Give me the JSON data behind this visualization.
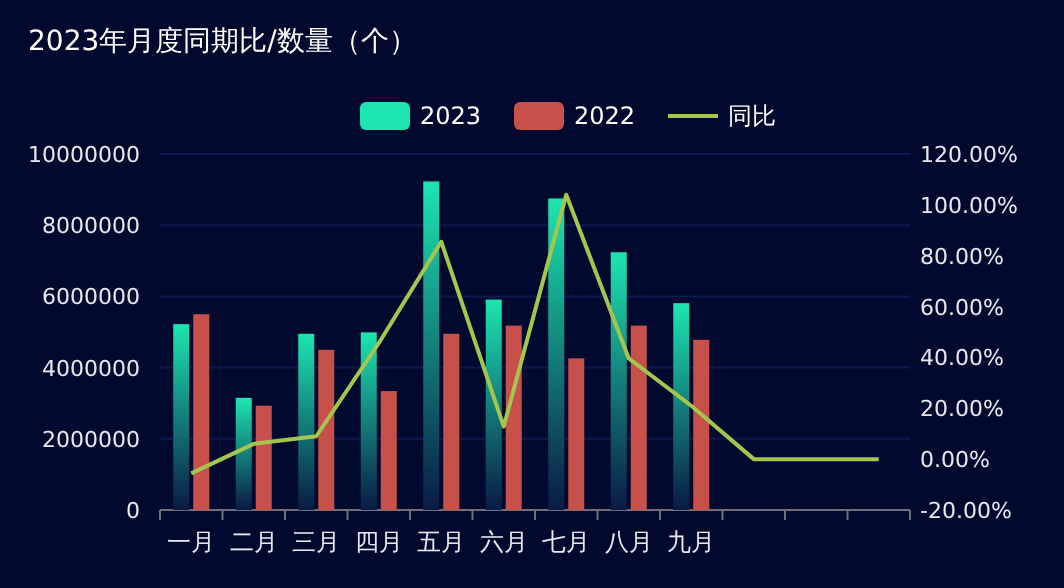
{
  "chart_data": {
    "type": "bar",
    "title": "2023年月度同期比/数量（个）",
    "categories": [
      "一月",
      "二月",
      "三月",
      "四月",
      "五月",
      "六月",
      "七月",
      "八月",
      "九月",
      null,
      null,
      null
    ],
    "series": [
      {
        "name": "2023",
        "color": "#1de5b0",
        "values": [
          5220000,
          3150000,
          4950000,
          4990000,
          9230000,
          5910000,
          8750000,
          7240000,
          5810000,
          null,
          null,
          null
        ]
      },
      {
        "name": "2022",
        "color": "#c8504b",
        "values": [
          5500000,
          2930000,
          4500000,
          3340000,
          4950000,
          5180000,
          4260000,
          5180000,
          4780000,
          null,
          null,
          null
        ]
      },
      {
        "name": "同比",
        "type": "line",
        "axis": "y2",
        "color": "#a4c64e",
        "values": [
          -5.6,
          6,
          9,
          45.6,
          85.5,
          12.8,
          104,
          39.6,
          21,
          0,
          0,
          0
        ]
      }
    ],
    "ylim": [
      0,
      10000000
    ],
    "yticks": [
      0,
      2000000,
      4000000,
      6000000,
      8000000,
      10000000
    ],
    "y2lim": [
      -20,
      120
    ],
    "y2ticks": [
      {
        "value": -20,
        "label": "-20.00%"
      },
      {
        "value": 0,
        "label": "0.00%"
      },
      {
        "value": 20,
        "label": "20.00%"
      },
      {
        "value": 40,
        "label": "40.00%"
      },
      {
        "value": 60,
        "label": "60.00%"
      },
      {
        "value": 80,
        "label": "80.00%"
      },
      {
        "value": 100,
        "label": "100.00%"
      },
      {
        "value": 120,
        "label": "120.00%"
      }
    ],
    "grid": "y",
    "legend": "top"
  }
}
